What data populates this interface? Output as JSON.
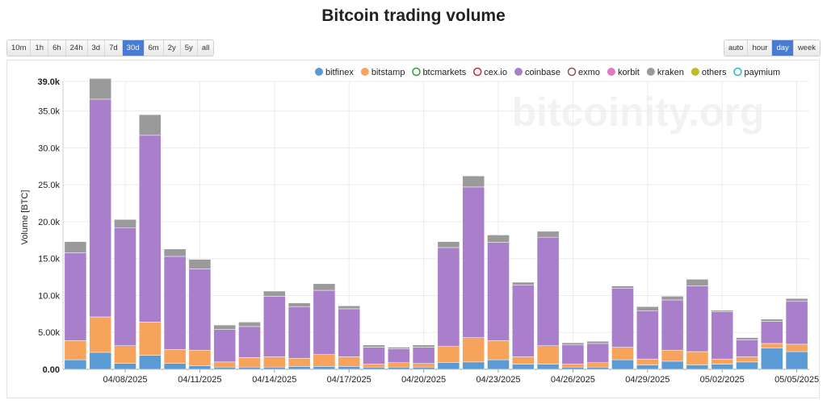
{
  "page": {
    "title": "Bitcoin trading volume",
    "range_buttons": [
      {
        "label": "10m",
        "active": false
      },
      {
        "label": "1h",
        "active": false
      },
      {
        "label": "6h",
        "active": false
      },
      {
        "label": "24h",
        "active": false
      },
      {
        "label": "3d",
        "active": false
      },
      {
        "label": "7d",
        "active": false
      },
      {
        "label": "30d",
        "active": true
      },
      {
        "label": "6m",
        "active": false
      },
      {
        "label": "2y",
        "active": false
      },
      {
        "label": "5y",
        "active": false
      },
      {
        "label": "all",
        "active": false
      }
    ],
    "resolution_buttons": [
      {
        "label": "auto",
        "active": false
      },
      {
        "label": "hour",
        "active": false
      },
      {
        "label": "day",
        "active": true
      },
      {
        "label": "week",
        "active": false
      }
    ],
    "watermark": "bitcoinity.org",
    "accent_color": "#4a7bd0"
  },
  "chart_data": {
    "type": "bar",
    "stacked": true,
    "ylabel": "Volume [BTC]",
    "ylim": [
      0,
      39000
    ],
    "yticks": [
      {
        "value": 0,
        "label": "0.00"
      },
      {
        "value": 5000,
        "label": "5.00k"
      },
      {
        "value": 10000,
        "label": "10.0k"
      },
      {
        "value": 15000,
        "label": "15.0k"
      },
      {
        "value": 20000,
        "label": "20.0k"
      },
      {
        "value": 25000,
        "label": "25.0k"
      },
      {
        "value": 30000,
        "label": "30.0k"
      },
      {
        "value": 35000,
        "label": "35.0k"
      },
      {
        "value": 39000,
        "label": "39.0k"
      }
    ],
    "grid": true,
    "legend_position": "top-right",
    "x": [
      "04/06/2025",
      "04/07/2025",
      "04/08/2025",
      "04/09/2025",
      "04/10/2025",
      "04/11/2025",
      "04/12/2025",
      "04/13/2025",
      "04/14/2025",
      "04/15/2025",
      "04/16/2025",
      "04/17/2025",
      "04/18/2025",
      "04/19/2025",
      "04/20/2025",
      "04/21/2025",
      "04/22/2025",
      "04/23/2025",
      "04/24/2025",
      "04/25/2025",
      "04/26/2025",
      "04/27/2025",
      "04/28/2025",
      "04/29/2025",
      "04/30/2025",
      "05/01/2025",
      "05/02/2025",
      "05/03/2025",
      "05/04/2025",
      "05/05/2025"
    ],
    "x_tick_labels": [
      "04/08/2025",
      "04/11/2025",
      "04/14/2025",
      "04/17/2025",
      "04/20/2025",
      "04/23/2025",
      "04/26/2025",
      "04/29/2025",
      "05/02/2025",
      "05/05/2025"
    ],
    "series": [
      {
        "name": "bitfinex",
        "color": "#5b9bd5",
        "marker": "filled",
        "values": [
          1300,
          2300,
          800,
          1900,
          800,
          500,
          300,
          300,
          300,
          400,
          400,
          400,
          300,
          300,
          300,
          900,
          1000,
          1300,
          700,
          700,
          300,
          300,
          1300,
          600,
          1100,
          600,
          700,
          1000,
          2900,
          2400
        ]
      },
      {
        "name": "bitstamp",
        "color": "#f7a35c",
        "marker": "filled",
        "values": [
          2600,
          4800,
          2400,
          4500,
          1900,
          2100,
          700,
          1300,
          1400,
          1100,
          1600,
          1300,
          400,
          600,
          500,
          2200,
          3300,
          2600,
          1000,
          2500,
          400,
          600,
          1700,
          800,
          1500,
          1800,
          700,
          700,
          600,
          1000
        ]
      },
      {
        "name": "btcmarkets",
        "color": "#2ca02c",
        "marker": "hollow",
        "values": [
          0,
          0,
          0,
          0,
          0,
          0,
          0,
          0,
          0,
          0,
          0,
          0,
          0,
          0,
          0,
          0,
          0,
          0,
          0,
          0,
          0,
          0,
          0,
          0,
          0,
          0,
          0,
          0,
          0,
          0
        ]
      },
      {
        "name": "cex.io",
        "color": "#d62728",
        "marker": "hollow",
        "values": [
          0,
          0,
          0,
          0,
          0,
          0,
          0,
          0,
          0,
          0,
          0,
          0,
          0,
          0,
          0,
          0,
          0,
          0,
          0,
          0,
          0,
          0,
          0,
          0,
          0,
          0,
          0,
          0,
          0,
          0
        ]
      },
      {
        "name": "coinbase",
        "color": "#a97fcc",
        "marker": "filled",
        "values": [
          11900,
          29500,
          16000,
          25300,
          12600,
          11000,
          4400,
          4200,
          8200,
          7000,
          8700,
          6500,
          2300,
          1900,
          2200,
          13400,
          20400,
          13300,
          9700,
          14700,
          2600,
          2600,
          8000,
          6500,
          6800,
          8900,
          6400,
          2300,
          3000,
          5800
        ]
      },
      {
        "name": "exmo",
        "color": "#8c564b",
        "marker": "hollow",
        "values": [
          0,
          0,
          0,
          0,
          0,
          0,
          0,
          0,
          0,
          0,
          0,
          0,
          0,
          0,
          0,
          0,
          0,
          0,
          0,
          0,
          0,
          0,
          0,
          0,
          0,
          0,
          0,
          0,
          0,
          0
        ]
      },
      {
        "name": "korbit",
        "color": "#e377c2",
        "marker": "filled",
        "values": [
          0,
          0,
          0,
          0,
          0,
          0,
          0,
          0,
          0,
          0,
          0,
          0,
          0,
          0,
          0,
          0,
          0,
          0,
          0,
          0,
          0,
          0,
          0,
          0,
          0,
          0,
          0,
          0,
          0,
          0
        ]
      },
      {
        "name": "kraken",
        "color": "#9a9a9a",
        "marker": "filled",
        "values": [
          1500,
          2800,
          1100,
          2800,
          1000,
          1300,
          600,
          600,
          700,
          500,
          900,
          400,
          300,
          200,
          300,
          800,
          1500,
          1000,
          400,
          800,
          300,
          300,
          300,
          600,
          500,
          900,
          200,
          300,
          300,
          400
        ]
      },
      {
        "name": "others",
        "color": "#bcbd22",
        "marker": "filled",
        "values": [
          0,
          0,
          0,
          0,
          0,
          0,
          0,
          0,
          0,
          0,
          0,
          0,
          0,
          0,
          0,
          0,
          0,
          0,
          0,
          0,
          0,
          0,
          0,
          0,
          0,
          0,
          0,
          0,
          0,
          0
        ]
      },
      {
        "name": "paymium",
        "color": "#17becf",
        "marker": "hollow",
        "values": [
          0,
          0,
          0,
          0,
          0,
          0,
          0,
          0,
          0,
          0,
          0,
          0,
          0,
          0,
          0,
          0,
          0,
          0,
          0,
          0,
          0,
          0,
          0,
          0,
          0,
          0,
          0,
          0,
          0,
          0
        ]
      }
    ]
  }
}
